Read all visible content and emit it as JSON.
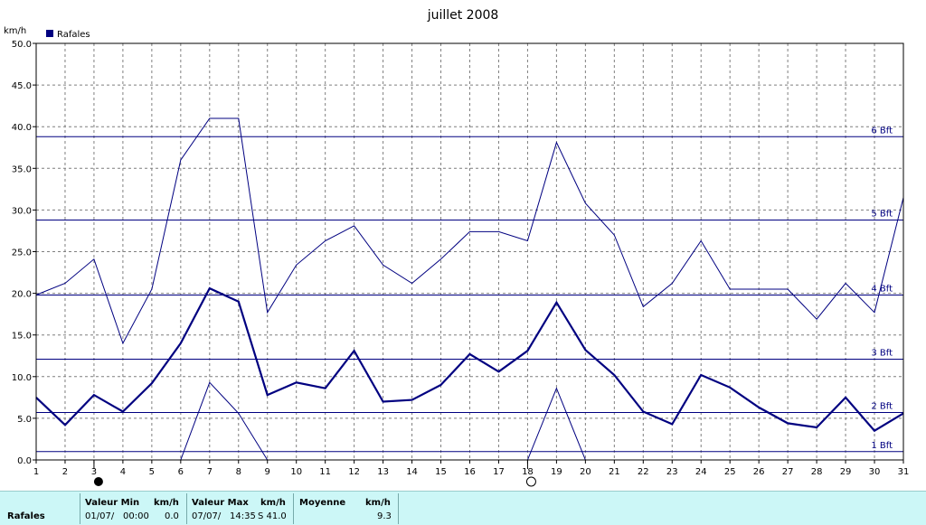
{
  "chart_data": {
    "type": "line",
    "title": "juillet 2008",
    "ylabel": "km/h",
    "ylim": [
      0,
      50
    ],
    "yticks": [
      "0.0",
      "5.0",
      "10.0",
      "15.0",
      "20.0",
      "25.0",
      "30.0",
      "35.0",
      "40.0",
      "45.0",
      "50.0"
    ],
    "x": [
      "1",
      "2",
      "3",
      "4",
      "5",
      "6",
      "7",
      "8",
      "9",
      "10",
      "11",
      "12",
      "13",
      "14",
      "15",
      "16",
      "17",
      "18",
      "19",
      "20",
      "21",
      "22",
      "23",
      "24",
      "25",
      "26",
      "27",
      "28",
      "29",
      "30",
      "31"
    ],
    "legend": "Rafales",
    "legend_color": "#000080",
    "grid": true,
    "series": [
      {
        "name": "Rafales",
        "role": "max",
        "values": [
          19.8,
          21.2,
          24.1,
          14.0,
          20.5,
          36.0,
          41.0,
          41.0,
          17.7,
          23.4,
          26.3,
          28.1,
          23.4,
          21.2,
          24.1,
          27.4,
          27.4,
          26.3,
          38.1,
          30.8,
          27.0,
          18.4,
          21.2,
          26.3,
          20.5,
          20.5,
          20.5,
          16.9,
          21.2,
          17.7,
          31.5
        ]
      },
      {
        "role": "mean",
        "values": [
          7.5,
          4.2,
          7.8,
          5.8,
          9.2,
          14.0,
          20.6,
          19.0,
          7.8,
          9.3,
          8.6,
          13.1,
          7.0,
          7.2,
          9.0,
          12.7,
          10.6,
          13.1,
          18.9,
          13.2,
          10.2,
          5.8,
          4.3,
          10.2,
          8.7,
          6.3,
          4.4,
          3.9,
          7.5,
          3.5,
          5.6
        ]
      },
      {
        "role": "min",
        "values": [
          null,
          null,
          null,
          null,
          null,
          0.0,
          9.3,
          5.6,
          0.0,
          null,
          null,
          null,
          null,
          null,
          null,
          null,
          null,
          0.0,
          8.6,
          0.0,
          null,
          null,
          null,
          null,
          null,
          null,
          null,
          null,
          null,
          null,
          null
        ]
      }
    ],
    "reference_lines": [
      {
        "label": "1 Bft",
        "value": 1.0
      },
      {
        "label": "2 Bft",
        "value": 5.7
      },
      {
        "label": "3 Bft",
        "value": 12.1
      },
      {
        "label": "4 Bft",
        "value": 19.8
      },
      {
        "label": "5 Bft",
        "value": 28.8
      },
      {
        "label": "6 Bft",
        "value": 38.8
      }
    ],
    "moon_phases": [
      {
        "day": 3,
        "phase": "new-moon"
      },
      {
        "day": 18,
        "phase": "full-moon"
      }
    ],
    "line_color": "#000080"
  },
  "stats": {
    "row_label": "Rafales",
    "min_header": "Valeur Min",
    "min_unit": "km/h",
    "min_date": "01/07/",
    "min_time": "00:00",
    "min_value": "0.0",
    "max_header": "Valeur Max",
    "max_unit": "km/h",
    "max_date": "07/07/",
    "max_time": "14:35",
    "max_value": "S 41.0",
    "avg_header": "Moyenne",
    "avg_unit": "km/h",
    "avg_value": "9.3"
  }
}
